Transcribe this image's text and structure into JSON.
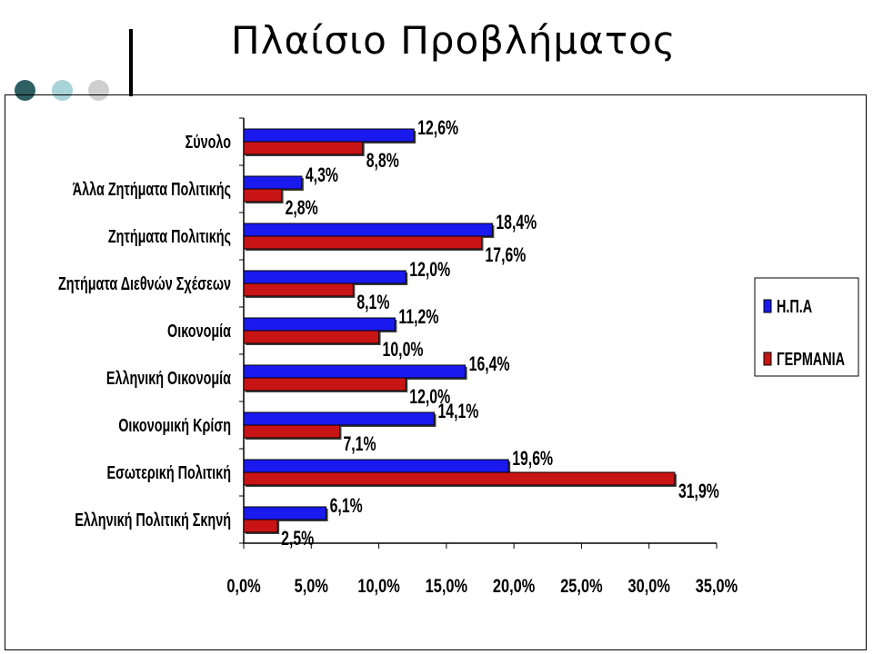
{
  "header": {
    "title": "Πλαίσιο Προβλήματος"
  },
  "chart_data": {
    "type": "bar",
    "orientation": "horizontal",
    "categories": [
      "Σύνολο",
      "Άλλα Ζητήματα Πολιτικής",
      "Ζητήματα Πολιτικής",
      "Ζητήματα Διεθνών Σχέσεων",
      "Οικονομία",
      "Ελληνική Οικονομία",
      "Οικονομική Κρίση",
      "Εσωτερική Πολιτική",
      "Ελληνική Πολιτική Σκηνή"
    ],
    "series": [
      {
        "name": "Η.Π.Α",
        "color": "#1a1aee",
        "values": [
          12.6,
          4.3,
          18.4,
          12.0,
          11.2,
          16.4,
          14.1,
          19.6,
          6.1
        ],
        "labels": [
          "12,6%",
          "4,3%",
          "18,4%",
          "12,0%",
          "11,2%",
          "16,4%",
          "14,1%",
          "19,6%",
          "6,1%"
        ]
      },
      {
        "name": "ΓΕΡΜΑΝΙΑ",
        "color": "#c81414",
        "values": [
          8.8,
          2.8,
          17.6,
          8.1,
          10.0,
          12.0,
          7.1,
          31.9,
          2.5
        ],
        "labels": [
          "8,8%",
          "2,8%",
          "17,6%",
          "8,1%",
          "10,0%",
          "12,0%",
          "7,1%",
          "31,9%",
          "2,5%"
        ]
      }
    ],
    "xlim": [
      0,
      35
    ],
    "xticks": [
      0,
      5,
      10,
      15,
      20,
      25,
      30,
      35
    ],
    "xtick_labels": [
      "0,0%",
      "5,0%",
      "10,0%",
      "15,0%",
      "20,0%",
      "25,0%",
      "30,0%",
      "35,0%"
    ],
    "legend_position": "right",
    "grid": false
  }
}
